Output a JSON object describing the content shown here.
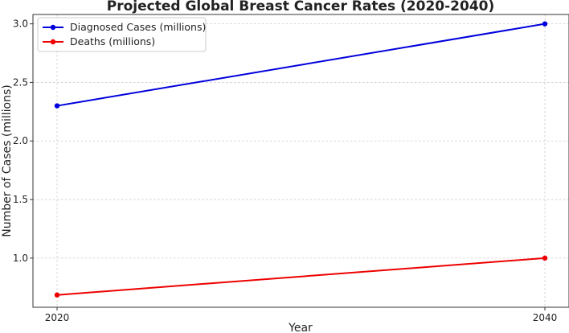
{
  "chart_data": {
    "type": "line",
    "title": "Projected Global Breast Cancer Rates (2020-2040)",
    "xlabel": "Year",
    "ylabel": "Number of Cases (millions)",
    "x": [
      2020,
      2040
    ],
    "x_tick_labels": [
      "2020",
      "2040"
    ],
    "y_ticks": [
      1.0,
      1.5,
      2.0,
      2.5,
      3.0
    ],
    "y_tick_labels": [
      "1.0",
      "1.5",
      "2.0",
      "2.5",
      "3.0"
    ],
    "ylim": [
      0.58,
      3.08
    ],
    "grid": true,
    "legend_position": "top-left",
    "series": [
      {
        "name": "Diagnosed Cases (millions)",
        "values": [
          2.3,
          3.0
        ],
        "color": "#0000dd"
      },
      {
        "name": "Deaths (millions)",
        "values": [
          0.685,
          1.0
        ],
        "color": "#ee0000"
      }
    ]
  }
}
